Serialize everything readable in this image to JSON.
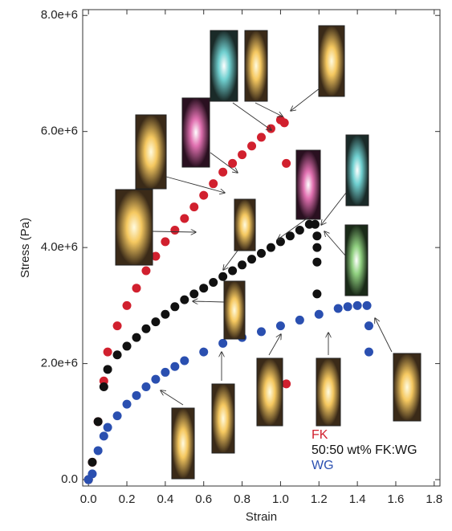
{
  "chart_data": {
    "type": "scatter",
    "xlabel": "Strain",
    "ylabel": "Stress (Pa)",
    "xlim": [
      -0.03,
      1.83
    ],
    "ylim": [
      -110000,
      8100000
    ],
    "xticks": [
      {
        "value": 0,
        "label": "0.0"
      },
      {
        "value": 0.2,
        "label": "0.2"
      },
      {
        "value": 0.4,
        "label": "0.4"
      },
      {
        "value": 0.6,
        "label": "0.6"
      },
      {
        "value": 0.8,
        "label": "0.8"
      },
      {
        "value": 1.0,
        "label": "1.0"
      },
      {
        "value": 1.2,
        "label": "1.2"
      },
      {
        "value": 1.4,
        "label": "1.4"
      },
      {
        "value": 1.6,
        "label": "1.6"
      },
      {
        "value": 1.8,
        "label": "1.8"
      }
    ],
    "yticks": [
      {
        "value": 0,
        "label": "0.0"
      },
      {
        "value": 2000000,
        "label": "2.0e+6"
      },
      {
        "value": 4000000,
        "label": "4.0e+6"
      },
      {
        "value": 6000000,
        "label": "6.0e+6"
      },
      {
        "value": 8000000,
        "label": "8.0e+6"
      }
    ],
    "series": [
      {
        "name": "FK",
        "color": "#d1202e",
        "x": [
          0,
          0.02,
          0.05,
          0.08,
          0.1,
          0.15,
          0.2,
          0.25,
          0.3,
          0.35,
          0.4,
          0.45,
          0.5,
          0.55,
          0.6,
          0.65,
          0.7,
          0.75,
          0.8,
          0.85,
          0.9,
          0.95,
          1.0,
          1.02,
          1.03,
          1.03
        ],
        "values": [
          0,
          300000,
          1000000,
          1700000,
          2200000,
          2650000,
          3000000,
          3300000,
          3600000,
          3850000,
          4100000,
          4300000,
          4500000,
          4700000,
          4900000,
          5100000,
          5300000,
          5450000,
          5600000,
          5750000,
          5900000,
          6050000,
          6200000,
          6150000,
          5450000,
          1650000
        ]
      },
      {
        "name": "50:50 wt% FK:WG",
        "color": "#111111",
        "x": [
          0,
          0.02,
          0.05,
          0.08,
          0.1,
          0.15,
          0.2,
          0.25,
          0.3,
          0.35,
          0.4,
          0.45,
          0.5,
          0.55,
          0.6,
          0.65,
          0.7,
          0.75,
          0.8,
          0.85,
          0.9,
          0.95,
          1.0,
          1.05,
          1.1,
          1.15,
          1.18,
          1.19,
          1.19,
          1.19,
          1.19
        ],
        "values": [
          0,
          300000,
          1000000,
          1600000,
          1900000,
          2150000,
          2300000,
          2450000,
          2600000,
          2720000,
          2850000,
          2980000,
          3100000,
          3200000,
          3300000,
          3400000,
          3500000,
          3600000,
          3700000,
          3800000,
          3900000,
          4000000,
          4100000,
          4200000,
          4300000,
          4400000,
          4400000,
          4200000,
          4000000,
          3750000,
          3200000
        ]
      },
      {
        "name": "WG",
        "color": "#2a4fb0",
        "x": [
          0,
          0.02,
          0.05,
          0.08,
          0.1,
          0.15,
          0.2,
          0.25,
          0.3,
          0.35,
          0.4,
          0.45,
          0.5,
          0.6,
          0.7,
          0.8,
          0.9,
          1.0,
          1.1,
          1.2,
          1.3,
          1.35,
          1.4,
          1.45,
          1.46,
          1.46
        ],
        "values": [
          0,
          100000,
          500000,
          750000,
          900000,
          1100000,
          1300000,
          1450000,
          1600000,
          1730000,
          1850000,
          1950000,
          2050000,
          2200000,
          2350000,
          2450000,
          2550000,
          2650000,
          2750000,
          2850000,
          2950000,
          2980000,
          3000000,
          3000000,
          2650000,
          2200000
        ]
      }
    ]
  }
}
